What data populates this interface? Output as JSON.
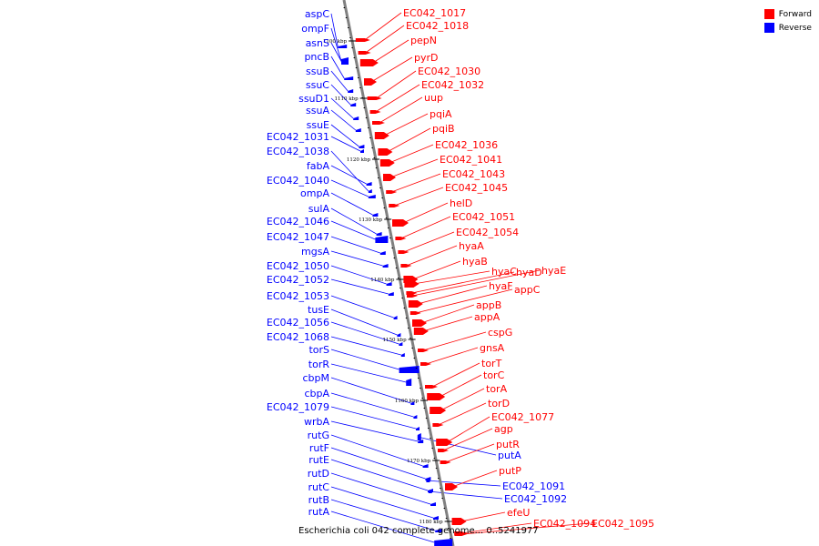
{
  "legend": {
    "items": [
      {
        "label": "Forward",
        "color": "#ff0000"
      },
      {
        "label": "Reverse",
        "color": "#0000ff"
      }
    ]
  },
  "caption": "Escherichia coli 042 complete genome... 0..5241977",
  "colors": {
    "forward": "#ff0000",
    "reverse": "#0000ff",
    "axis": "#808080",
    "forward_line": "#ff0000",
    "reverse_line": "#0000ff"
  },
  "ticks": [
    "1100 kbp",
    "1110 kbp",
    "1120 kbp",
    "1130 kbp",
    "1140 kbp",
    "1150 kbp",
    "1160 kbp",
    "1170 kbp",
    "1180 kbp"
  ],
  "reverse_genes": [
    "aspC",
    "ompF",
    "asnS",
    "pncB",
    "ssuB",
    "ssuC",
    "ssuD1",
    "ssuA",
    "ssuE",
    "EC042_1031",
    "EC042_1038",
    "fabA",
    "EC042_1040",
    "ompA",
    "sulA",
    "EC042_1046",
    "EC042_1047",
    "mgsA",
    "EC042_1050",
    "EC042_1052",
    "EC042_1053",
    "tusE",
    "EC042_1056",
    "EC042_1068",
    "torS",
    "torR",
    "cbpM",
    "cbpA",
    "EC042_1079",
    "wrbA",
    "rutG",
    "rutF",
    "rutE",
    "rutD",
    "rutC",
    "rutB",
    "rutA",
    "putA",
    "EC042_1091",
    "EC042_1092"
  ],
  "forward_genes": [
    "EC042_1017",
    "EC042_1018",
    "pepN",
    "pyrD",
    "EC042_1030",
    "EC042_1032",
    "uup",
    "pqiA",
    "pqiB",
    "EC042_1036",
    "EC042_1041",
    "EC042_1043",
    "EC042_1045",
    "helD",
    "EC042_1051",
    "EC042_1054",
    "hyaA",
    "hyaB",
    "hyaC",
    "hyaD",
    "hyaE",
    "hyaF",
    "appC",
    "appB",
    "appA",
    "cspG",
    "gnsA",
    "torT",
    "torC",
    "torA",
    "torD",
    "EC042_1077",
    "agp",
    "putR",
    "putP",
    "efeU",
    "EC042_1094",
    "EC042_1095"
  ]
}
